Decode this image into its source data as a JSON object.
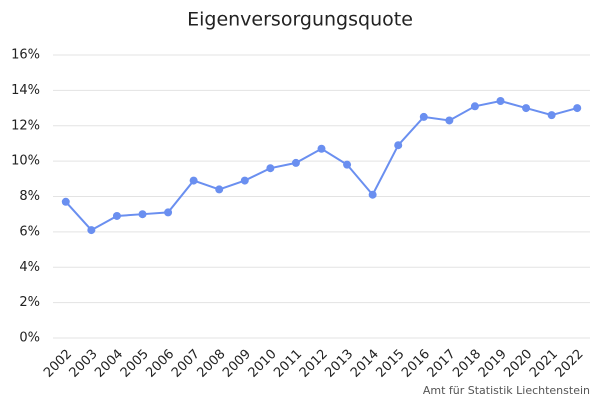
{
  "chart_data": {
    "type": "line",
    "title": "Eigenversorgungsquote",
    "categories": [
      "2002",
      "2003",
      "2004",
      "2005",
      "2006",
      "2007",
      "2008",
      "2009",
      "2010",
      "2011",
      "2012",
      "2013",
      "2014",
      "2015",
      "2016",
      "2017",
      "2018",
      "2019",
      "2020",
      "2021",
      "2022"
    ],
    "series": [
      {
        "name": "Eigenversorgungsquote",
        "color": "#6a8ff0",
        "values": [
          7.7,
          6.1,
          6.9,
          7.0,
          7.1,
          8.9,
          8.4,
          8.9,
          9.6,
          9.9,
          10.7,
          9.8,
          8.1,
          10.9,
          12.5,
          12.3,
          13.1,
          13.4,
          13.0,
          12.6,
          13.0
        ]
      }
    ],
    "ylim": [
      0,
      16
    ],
    "yticks": [
      {
        "value": 0,
        "label": "0%"
      },
      {
        "value": 2,
        "label": "2%"
      },
      {
        "value": 4,
        "label": "4%"
      },
      {
        "value": 6,
        "label": "6%"
      },
      {
        "value": 8,
        "label": "8%"
      },
      {
        "value": 10,
        "label": "10%"
      },
      {
        "value": 12,
        "label": "12%"
      },
      {
        "value": 14,
        "label": "14%"
      },
      {
        "value": 16,
        "label": "16%"
      }
    ],
    "grid": true,
    "source": "Amt für Statistik Liechtenstein"
  }
}
